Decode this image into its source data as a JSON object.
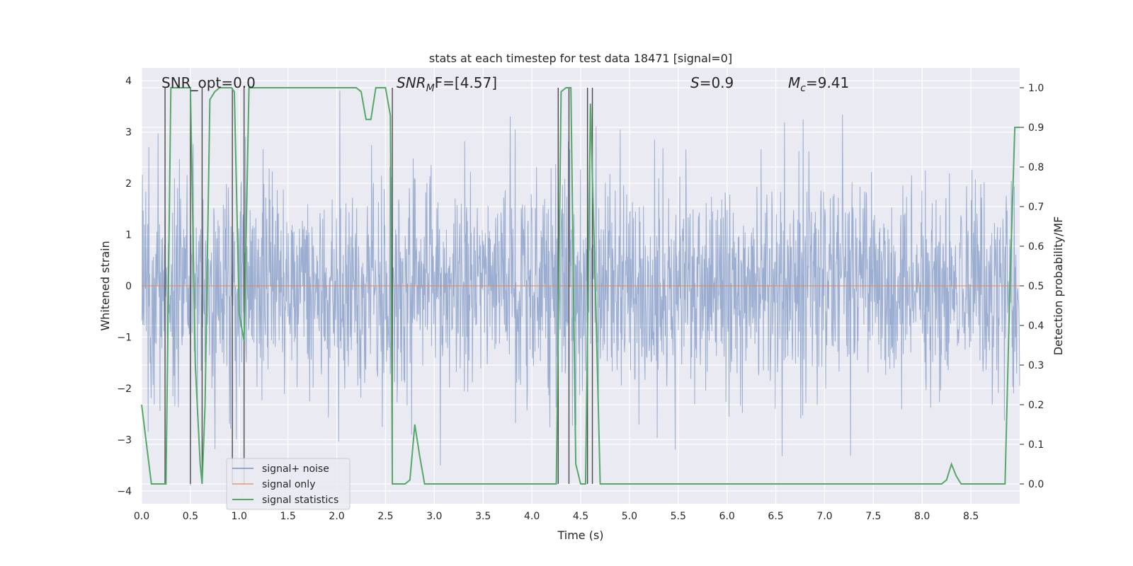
{
  "chart_data": {
    "type": "line",
    "title": "stats at each timestep for test data 18471 [signal=0]",
    "xlabel": "Time (s)",
    "ylabel_left": "Whitened strain",
    "ylabel_right": "Detection probability/MF",
    "xlim": [
      0.0,
      9.0
    ],
    "ylim_left": [
      -4.25,
      4.25
    ],
    "ylim_right": [
      -0.05,
      1.05
    ],
    "x_ticks": [
      "0.0",
      "0.5",
      "1.0",
      "1.5",
      "2.0",
      "2.5",
      "3.0",
      "3.5",
      "4.0",
      "4.5",
      "5.0",
      "5.5",
      "6.0",
      "6.5",
      "7.0",
      "7.5",
      "8.0",
      "8.5"
    ],
    "y_left_ticks": [
      "−4",
      "−3",
      "−2",
      "−1",
      "0",
      "1",
      "2",
      "3",
      "4"
    ],
    "y_right_ticks": [
      "0.0",
      "0.1",
      "0.2",
      "0.3",
      "0.4",
      "0.5",
      "0.6",
      "0.7",
      "0.8",
      "0.9",
      "1.0"
    ],
    "annotations": {
      "snr_opt": "SNR_opt=0.0",
      "snr_mf_main": "SNR",
      "snr_mf_sub": "M",
      "snr_mf_rest": "F=[4.57]",
      "s_main": "S",
      "s_rest": "=0.9",
      "mc_main": "M",
      "mc_sub": "c",
      "mc_rest": "=9.41"
    },
    "legend": {
      "placement": "lower-left",
      "entries": [
        "signal+ noise",
        "signal only",
        "signal statistics"
      ]
    },
    "series": [
      {
        "name": "signal+ noise",
        "axis": "left",
        "color": "#4c72b0",
        "style": "dense noise, amplitude about ±2 with spikes to ±3.8",
        "seed": 18471,
        "n_samples": 2300
      },
      {
        "name": "signal only",
        "axis": "left",
        "color": "#dd8452",
        "x": [
          0.0,
          9.0
        ],
        "y": [
          0.0,
          0.0
        ]
      },
      {
        "name": "signal statistics",
        "axis": "right",
        "color": "#55a868",
        "x": [
          0.0,
          0.05,
          0.1,
          0.15,
          0.2,
          0.25,
          0.3,
          0.35,
          0.4,
          0.45,
          0.5,
          0.55,
          0.6,
          0.62,
          0.65,
          0.7,
          0.75,
          0.8,
          0.85,
          0.9,
          0.92,
          0.95,
          1.0,
          1.05,
          1.1,
          1.15,
          1.2,
          1.25,
          1.3,
          1.35,
          1.4,
          1.45,
          1.5,
          1.6,
          1.7,
          1.8,
          1.9,
          2.0,
          2.1,
          2.2,
          2.25,
          2.3,
          2.35,
          2.4,
          2.45,
          2.5,
          2.55,
          2.57,
          2.6,
          2.65,
          2.7,
          2.75,
          2.8,
          2.85,
          2.9,
          2.95,
          3.0,
          3.5,
          4.0,
          4.2,
          4.25,
          4.3,
          4.35,
          4.4,
          4.45,
          4.5,
          4.55,
          4.6,
          4.65,
          4.7,
          4.75,
          4.8,
          5.0,
          6.0,
          7.0,
          8.0,
          8.2,
          8.25,
          8.3,
          8.35,
          8.4,
          8.45,
          8.5,
          8.6,
          8.7,
          8.8,
          8.85,
          8.9,
          8.95,
          9.0
        ],
        "y": [
          0.2,
          0.1,
          0.0,
          0.0,
          0.0,
          0.0,
          1.0,
          1.0,
          1.0,
          1.0,
          1.0,
          0.3,
          0.05,
          0.0,
          0.2,
          0.97,
          0.99,
          1.0,
          1.0,
          1.0,
          1.0,
          0.99,
          0.43,
          0.36,
          1.0,
          1.0,
          1.0,
          1.0,
          1.0,
          1.0,
          1.0,
          1.0,
          1.0,
          1.0,
          1.0,
          1.0,
          1.0,
          1.0,
          1.0,
          1.0,
          0.99,
          0.92,
          0.92,
          1.0,
          1.0,
          1.0,
          0.93,
          0.0,
          0.0,
          0.0,
          0.0,
          0.01,
          0.15,
          0.07,
          0.0,
          0.0,
          0.0,
          0.0,
          0.0,
          0.0,
          0.0,
          0.99,
          1.0,
          1.0,
          0.05,
          0.0,
          0.0,
          0.96,
          0.5,
          0.0,
          0.0,
          0.0,
          0.0,
          0.0,
          0.0,
          0.0,
          0.0,
          0.01,
          0.05,
          0.02,
          0.0,
          0.0,
          0.0,
          0.0,
          0.0,
          0.0,
          0.0,
          0.5,
          0.9,
          0.9
        ]
      }
    ],
    "vertical_markers": [
      0.24,
      0.5,
      0.62,
      0.93,
      1.05,
      2.57,
      4.27,
      4.38,
      4.57,
      4.62
    ]
  }
}
